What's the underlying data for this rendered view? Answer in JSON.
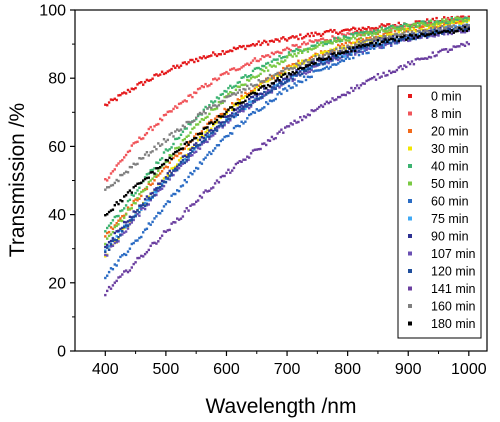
{
  "chart_data": {
    "type": "scatter",
    "xlabel": "Wavelength /nm",
    "ylabel": "Transmission /%",
    "xlim": [
      350,
      1030
    ],
    "ylim": [
      0,
      100
    ],
    "xticks": [
      400,
      500,
      600,
      700,
      800,
      900,
      1000
    ],
    "yticks": [
      0,
      20,
      40,
      60,
      80,
      100
    ],
    "grid": false,
    "legend_position": "right",
    "x": [
      400,
      450,
      500,
      550,
      600,
      650,
      700,
      750,
      800,
      850,
      900,
      950,
      1000
    ],
    "series": [
      {
        "name": "0 min",
        "color": "#e41a1c",
        "values": [
          72,
          77.5,
          82,
          85.5,
          88,
          90,
          91.5,
          93,
          94,
          95,
          96,
          97,
          98
        ]
      },
      {
        "name": "8 min",
        "color": "#f0555a",
        "values": [
          50,
          61,
          69,
          76,
          81.5,
          85.5,
          88.5,
          91,
          92.5,
          94,
          95,
          96.5,
          97.5
        ]
      },
      {
        "name": "20 min",
        "color": "#f26a1b",
        "values": [
          34,
          44,
          54,
          63,
          71,
          77.5,
          83,
          87,
          90,
          92.5,
          94,
          95.5,
          97
        ]
      },
      {
        "name": "30 min",
        "color": "#f2e600",
        "values": [
          28,
          40,
          51,
          61,
          70,
          77,
          82.5,
          86.5,
          89.5,
          92,
          94,
          95.5,
          97
        ]
      },
      {
        "name": "40 min",
        "color": "#3cb371",
        "values": [
          35,
          47,
          58.5,
          68.5,
          76.5,
          82.5,
          87,
          90,
          92,
          94,
          95.5,
          96.5,
          97.5
        ]
      },
      {
        "name": "50 min",
        "color": "#7ac943",
        "values": [
          32,
          44,
          55.5,
          66,
          74.5,
          81,
          86,
          89.5,
          91.5,
          93.5,
          95,
          96.5,
          97.5
        ]
      },
      {
        "name": "60 min",
        "color": "#2b6cc4",
        "values": [
          22,
          32,
          43,
          53.5,
          63,
          70.5,
          77,
          82,
          86,
          89,
          91.5,
          93.5,
          95
        ]
      },
      {
        "name": "75 min",
        "color": "#3fa9f5",
        "values": [
          30,
          40,
          50,
          59.5,
          67.5,
          74,
          79.5,
          84,
          87.5,
          90,
          92,
          94,
          95.5
        ]
      },
      {
        "name": "90 min",
        "color": "#2e3192",
        "values": [
          31,
          41,
          51,
          60.5,
          68.5,
          75,
          80.5,
          85,
          88.5,
          91,
          92.5,
          94,
          95
        ]
      },
      {
        "name": "107 min",
        "color": "#6a4fb3",
        "values": [
          28,
          39,
          49.5,
          59,
          67,
          73.5,
          79,
          83.5,
          87,
          89.5,
          91.5,
          93,
          94
        ]
      },
      {
        "name": "120 min",
        "color": "#1f4e9c",
        "values": [
          29,
          40,
          50,
          59.5,
          67.5,
          74,
          79.5,
          84,
          87.5,
          90,
          92,
          93.5,
          94.5
        ]
      },
      {
        "name": "141 min",
        "color": "#6b3fa0",
        "values": [
          17,
          26,
          35,
          44,
          52,
          59,
          65.5,
          71,
          76,
          80.5,
          84,
          87.5,
          90
        ]
      },
      {
        "name": "160 min",
        "color": "#808080",
        "values": [
          47,
          55,
          62,
          68.5,
          74,
          78.5,
          82.5,
          86,
          89,
          91.5,
          93,
          94.5,
          95.5
        ]
      },
      {
        "name": "180 min",
        "color": "#000000",
        "values": [
          40,
          48,
          55.5,
          63,
          70,
          76,
          81,
          85,
          88,
          90.5,
          92,
          93.5,
          94.5
        ]
      }
    ]
  }
}
